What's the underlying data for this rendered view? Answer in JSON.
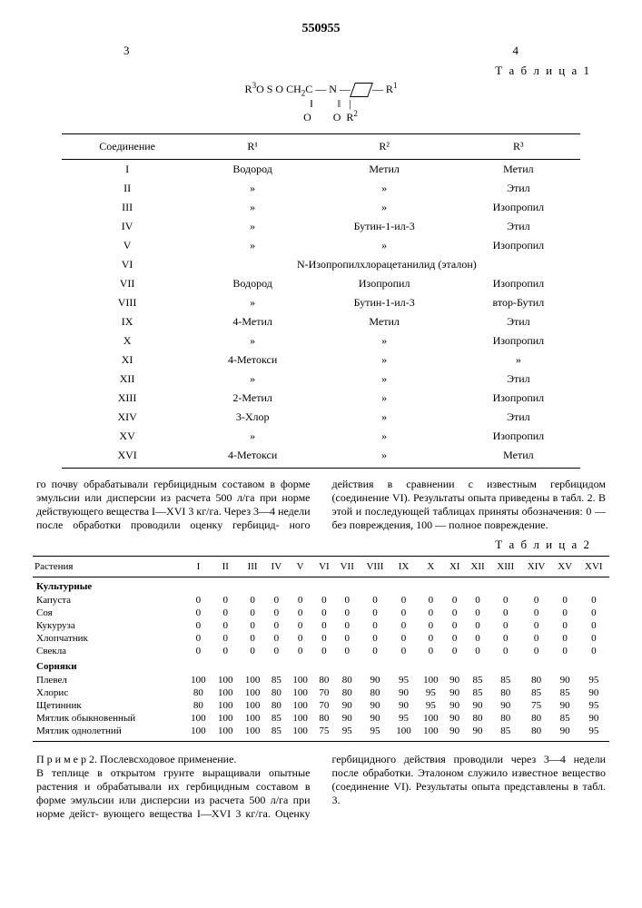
{
  "doc_number": "550955",
  "page_left": "3",
  "page_right": "4",
  "table1_label": "Т а б л и ц а 1",
  "formula": {
    "line1": "R³O S O CH₂C — N —⟨ ⟩— R¹",
    "line2": "‖         ‖   |",
    "line3": "O         O  R²"
  },
  "t1": {
    "headers": [
      "Соединение",
      "R¹",
      "R²",
      "R³"
    ],
    "rows": [
      {
        "c": "I",
        "r1": "Водород",
        "r2": "Метил",
        "r3": "Метил"
      },
      {
        "c": "II",
        "r1": "»",
        "r2": "»",
        "r3": "Этил"
      },
      {
        "c": "III",
        "r1": "»",
        "r2": "»",
        "r3": "Изопропил"
      },
      {
        "c": "IV",
        "r1": "»",
        "r2": "Бутин-1-ил-3",
        "r3": "Этил"
      },
      {
        "c": "V",
        "r1": "»",
        "r2": "»",
        "r3": "Изопропил"
      },
      {
        "c": "VI",
        "span": "N-Изопропилхлорацетанилид (эталон)"
      },
      {
        "c": "VII",
        "r1": "Водород",
        "r2": "Изопропил",
        "r3": "Изопропил"
      },
      {
        "c": "VIII",
        "r1": "»",
        "r2": "Бутин-1-ил-3",
        "r3": "втор-Бутил"
      },
      {
        "c": "IX",
        "r1": "4-Метил",
        "r2": "Метил",
        "r3": "Этил"
      },
      {
        "c": "X",
        "r1": "»",
        "r2": "»",
        "r3": "Изопропил"
      },
      {
        "c": "XI",
        "r1": "4-Метокси",
        "r2": "»",
        "r3": "»"
      },
      {
        "c": "XII",
        "r1": "»",
        "r2": "»",
        "r3": "Этил"
      },
      {
        "c": "XIII",
        "r1": "2-Метил",
        "r2": "»",
        "r3": "Изопропил"
      },
      {
        "c": "XIV",
        "r1": "3-Хлор",
        "r2": "»",
        "r3": "Этил"
      },
      {
        "c": "XV",
        "r1": "»",
        "r2": "»",
        "r3": "Изопропил"
      },
      {
        "c": "XVI",
        "r1": "4-Метокси",
        "r2": "»",
        "r3": "Метил"
      }
    ]
  },
  "para1": "го почву обрабатывали гербицидным составом в форме эмульсии или дисперсии из расчета 500 л/га при норме действующего вещества I—XVI 3 кг/га. Через 3—4 недели после обработки проводили оценку гербицид-",
  "para2": "ного действия в сравнении с известным гербицидом (соединение VI). Результаты опыта приведены в табл. 2. В этой и последующей таблицах приняты обозначения: 0 — без повреждения, 100 — полное повреждение.",
  "linemark": "5",
  "table2_label": "Т а б л и ц а 2",
  "t2": {
    "head0": "Растения",
    "roman": [
      "I",
      "II",
      "III",
      "IV",
      "V",
      "VI",
      "VII",
      "VIII",
      "IX",
      "X",
      "XI",
      "XII",
      "XIII",
      "XIV",
      "XV",
      "XVI"
    ],
    "sub1": "Культурные",
    "crops": [
      {
        "n": "Капуста",
        "v": [
          0,
          0,
          0,
          0,
          0,
          0,
          0,
          0,
          0,
          0,
          0,
          0,
          0,
          0,
          0,
          0
        ]
      },
      {
        "n": "Соя",
        "v": [
          0,
          0,
          0,
          0,
          0,
          0,
          0,
          0,
          0,
          0,
          0,
          0,
          0,
          0,
          0,
          0
        ]
      },
      {
        "n": "Кукуруза",
        "v": [
          0,
          0,
          0,
          0,
          0,
          0,
          0,
          0,
          0,
          0,
          0,
          0,
          0,
          0,
          0,
          0
        ]
      },
      {
        "n": "Хлопчатник",
        "v": [
          0,
          0,
          0,
          0,
          0,
          0,
          0,
          0,
          0,
          0,
          0,
          0,
          0,
          0,
          0,
          0
        ]
      },
      {
        "n": "Свекла",
        "v": [
          0,
          0,
          0,
          0,
          0,
          0,
          0,
          0,
          0,
          0,
          0,
          0,
          0,
          0,
          0,
          0
        ]
      }
    ],
    "sub2": "Сорняки",
    "weeds": [
      {
        "n": "Плевел",
        "v": [
          100,
          100,
          100,
          85,
          100,
          80,
          80,
          90,
          95,
          100,
          90,
          85,
          85,
          80,
          90,
          95
        ]
      },
      {
        "n": "Хлорис",
        "v": [
          80,
          100,
          100,
          80,
          100,
          70,
          80,
          80,
          90,
          95,
          90,
          85,
          80,
          85,
          85,
          90
        ]
      },
      {
        "n": "Щетинник",
        "v": [
          80,
          100,
          100,
          80,
          100,
          70,
          90,
          90,
          90,
          95,
          90,
          90,
          90,
          75,
          90,
          95
        ]
      },
      {
        "n": "Мятлик обыкновенный",
        "v": [
          100,
          100,
          100,
          85,
          100,
          80,
          90,
          90,
          95,
          100,
          90,
          80,
          80,
          80,
          85,
          90
        ]
      },
      {
        "n": "Мятлик однолетний",
        "v": [
          100,
          100,
          100,
          85,
          100,
          75,
          95,
          95,
          100,
          100,
          90,
          90,
          85,
          80,
          90,
          95
        ]
      }
    ]
  },
  "para3_head": "П р и м е р 2. Послевсходовое применение.",
  "para3": "В теплице в открытом грунте выращивали опытные растения и обрабатывали их гербицидным составом в форме эмульсии или дисперсии из расчета 500 л/га при норме дейст-",
  "para4": "вующего вещества I—XVI 3 кг/га. Оценку гербицидного действия проводили через 3—4 недели после обработки. Эталоном служило известное вещество (соединение VI). Результаты опыта представлены в табл. 3.",
  "linemark2": "10"
}
